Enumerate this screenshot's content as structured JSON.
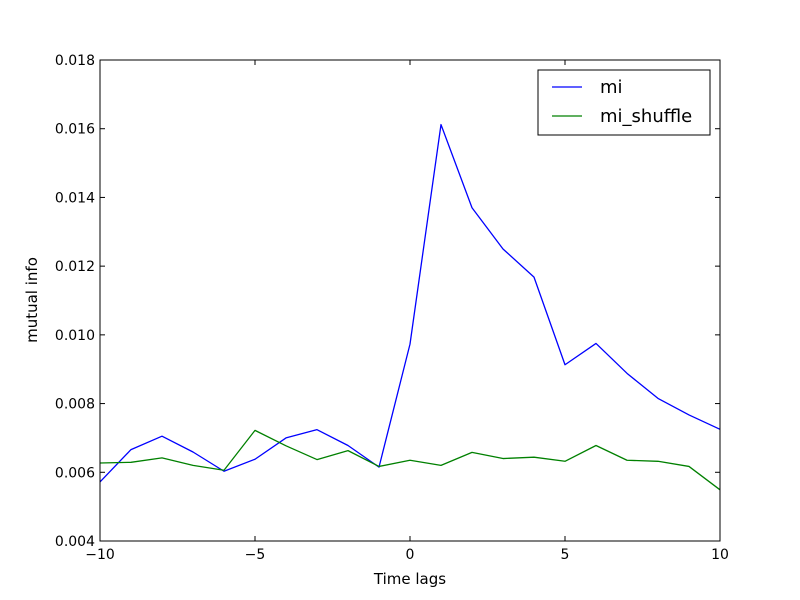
{
  "chart_data": {
    "type": "line",
    "title": "",
    "xlabel": "Time lags",
    "ylabel": "mutual info",
    "xlim": [
      -10,
      10
    ],
    "ylim": [
      0.004,
      0.018
    ],
    "x_ticks": [
      -10,
      -5,
      0,
      5,
      10
    ],
    "x_tick_labels": [
      "−10",
      "−5",
      "0",
      "5",
      "10"
    ],
    "y_ticks": [
      0.004,
      0.006,
      0.008,
      0.01,
      0.012,
      0.014,
      0.016,
      0.018
    ],
    "y_tick_labels": [
      "0.004",
      "0.006",
      "0.008",
      "0.010",
      "0.012",
      "0.014",
      "0.016",
      "0.018"
    ],
    "grid": false,
    "legend_position": "top-right",
    "x": [
      -10,
      -9,
      -8,
      -7,
      -6,
      -5,
      -4,
      -3,
      -2,
      -1,
      0,
      1,
      2,
      3,
      4,
      5,
      6,
      7,
      8,
      9,
      10
    ],
    "series": [
      {
        "name": "mi",
        "color": "#0000ff",
        "values": [
          0.00572,
          0.00666,
          0.00705,
          0.00659,
          0.00603,
          0.00638,
          0.007,
          0.00724,
          0.00678,
          0.00615,
          0.00973,
          0.01612,
          0.0137,
          0.0125,
          0.01168,
          0.00913,
          0.00975,
          0.00888,
          0.00815,
          0.00767,
          0.00725
        ]
      },
      {
        "name": "mi_shuffle",
        "color": "#008000",
        "values": [
          0.00627,
          0.00629,
          0.00642,
          0.0062,
          0.00606,
          0.00722,
          0.00677,
          0.00637,
          0.00663,
          0.00617,
          0.00635,
          0.0062,
          0.00658,
          0.0064,
          0.00644,
          0.00632,
          0.00678,
          0.00635,
          0.00632,
          0.00617,
          0.00549
        ]
      }
    ]
  }
}
